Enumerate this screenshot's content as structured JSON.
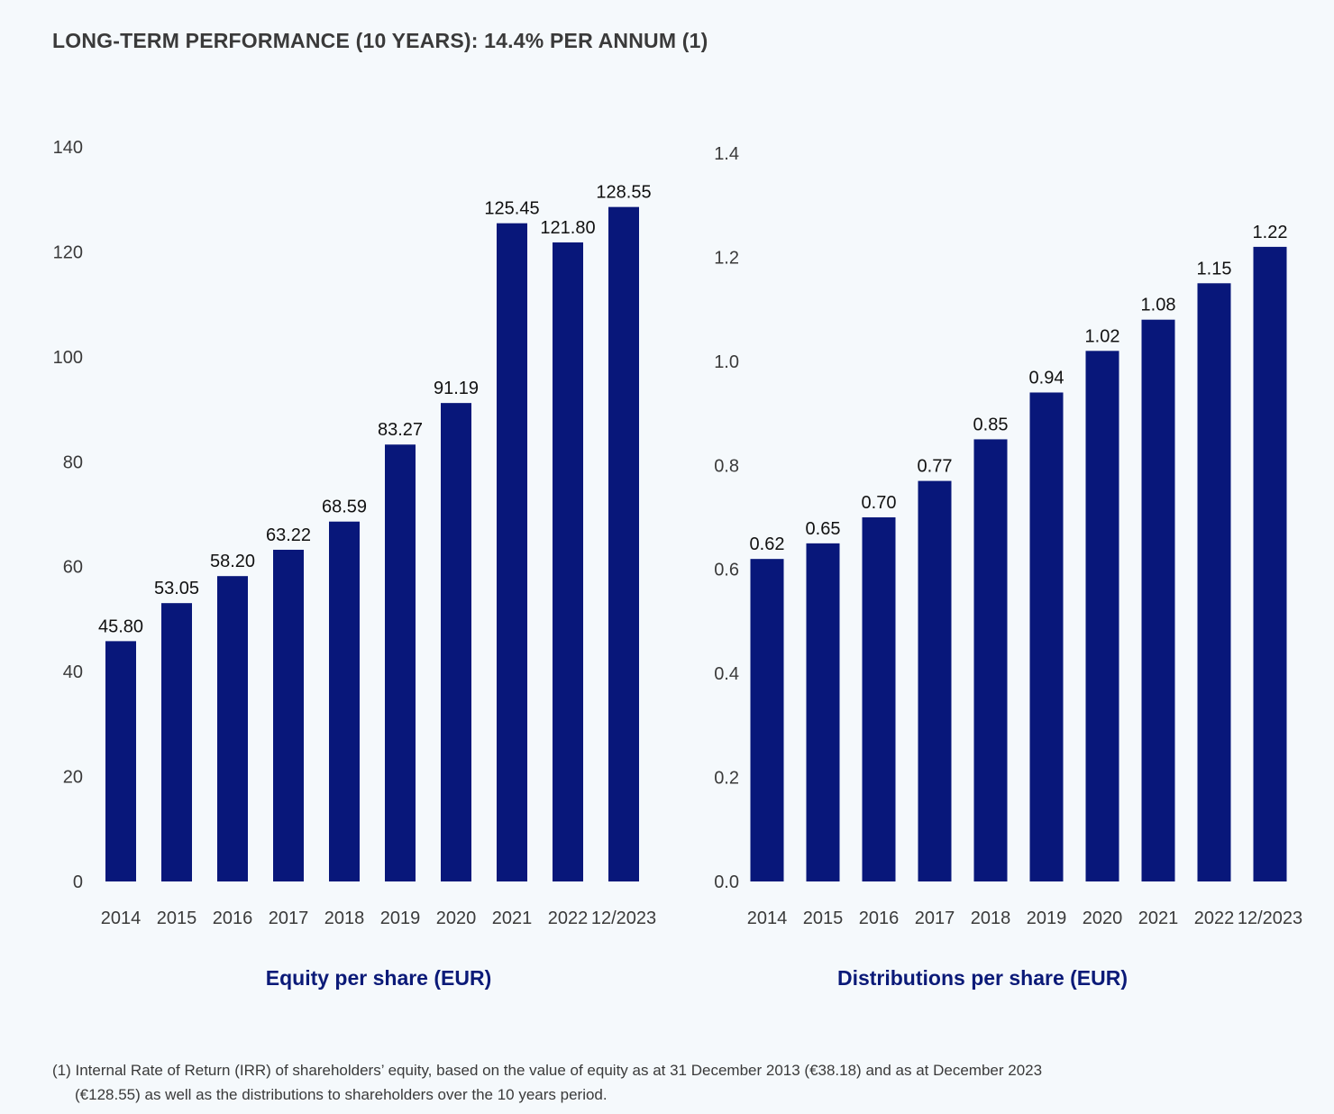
{
  "page": {
    "title": "LONG-TERM PERFORMANCE (10 YEARS): 14.4% PER ANNUM (1)",
    "footnote_line1": "(1) Internal Rate of Return (IRR) of shareholders’ equity, based on the value of equity as at 31 December 2013 (€38.18) and as at December 2023",
    "footnote_line2": "(€128.55) as well as the distributions to shareholders over the 10 years period."
  },
  "colors": {
    "bar": "#08177a",
    "title_accent": "#0b1a78",
    "text": "#333333"
  },
  "chart_data": [
    {
      "type": "bar",
      "title": "Equity per share (EUR)",
      "categories": [
        "2014",
        "2015",
        "2016",
        "2017",
        "2018",
        "2019",
        "2020",
        "2021",
        "2022",
        "12/2023"
      ],
      "values": [
        45.8,
        53.05,
        58.2,
        63.22,
        68.59,
        83.27,
        91.19,
        125.45,
        121.8,
        128.55
      ],
      "value_labels": [
        "45.80",
        "53.05",
        "58.20",
        "63.22",
        "68.59",
        "83.27",
        "91.19",
        "125.45",
        "121.80",
        "128.55"
      ],
      "ylim": [
        0,
        140
      ],
      "yticks": [
        0,
        20,
        40,
        60,
        80,
        100,
        120,
        140
      ],
      "ytick_labels": [
        "0",
        "20",
        "40",
        "60",
        "80",
        "100",
        "120",
        "140"
      ],
      "grid": false,
      "legend": "none"
    },
    {
      "type": "bar",
      "title": "Distributions per share (EUR)",
      "categories": [
        "2014",
        "2015",
        "2016",
        "2017",
        "2018",
        "2019",
        "2020",
        "2021",
        "2022",
        "12/2023"
      ],
      "values": [
        0.62,
        0.65,
        0.7,
        0.77,
        0.85,
        0.94,
        1.02,
        1.08,
        1.15,
        1.22
      ],
      "value_labels": [
        "0.62",
        "0.65",
        "0.70",
        "0.77",
        "0.85",
        "0.94",
        "1.02",
        "1.08",
        "1.15",
        "1.22"
      ],
      "ylim": [
        0,
        1.4
      ],
      "yticks": [
        0,
        0.2,
        0.4,
        0.6,
        0.8,
        1.0,
        1.2,
        1.4
      ],
      "ytick_labels": [
        "0.0",
        "0.2",
        "0.4",
        "0.6",
        "0.8",
        "1.0",
        "1.2",
        "1.4"
      ],
      "grid": false,
      "legend": "none"
    }
  ]
}
